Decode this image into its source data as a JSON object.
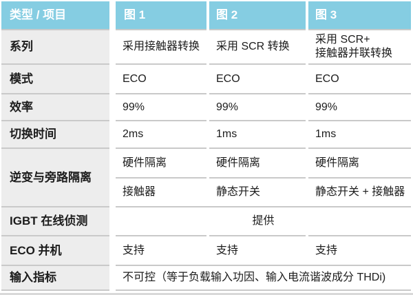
{
  "table": {
    "title_semantics": "product-mode-comparison-table",
    "columns": [
      "类型 / 项目",
      "图 1",
      "图 2",
      "图 3"
    ],
    "rows": [
      {
        "label": "系列",
        "values": [
          "采用接触器转换",
          "采用 SCR 转换",
          "采用 SCR+\n接触器并联转换"
        ]
      },
      {
        "label": "模式",
        "values": [
          "ECO",
          "ECO",
          "ECO"
        ]
      },
      {
        "label": "效率",
        "values": [
          "99%",
          "99%",
          "99%"
        ]
      },
      {
        "label": "切换时间",
        "values": [
          "2ms",
          "1ms",
          "1ms"
        ]
      },
      {
        "label": "逆变与旁路隔离",
        "sub_rows": [
          [
            "硬件隔离",
            "硬件隔离",
            "硬件隔离"
          ],
          [
            "接触器",
            "静态开关",
            "静态开关 + 接触器"
          ]
        ]
      },
      {
        "label": "IGBT 在线侦测",
        "span_value": "提供"
      },
      {
        "label": "ECO 并机",
        "values": [
          "支持",
          "支持",
          "支持"
        ]
      },
      {
        "label": "输入指标",
        "span_value": "不可控（等于负载输入功因、输入电流谐波成分 THDi)"
      }
    ],
    "colors": {
      "header_bg": "#85cde2",
      "header_text": "#ffffff",
      "label_bg": "#ededed",
      "divider": "#c9c9c9",
      "text": "#1c1c1c",
      "bottom_bar": "#d9d9d9"
    }
  }
}
